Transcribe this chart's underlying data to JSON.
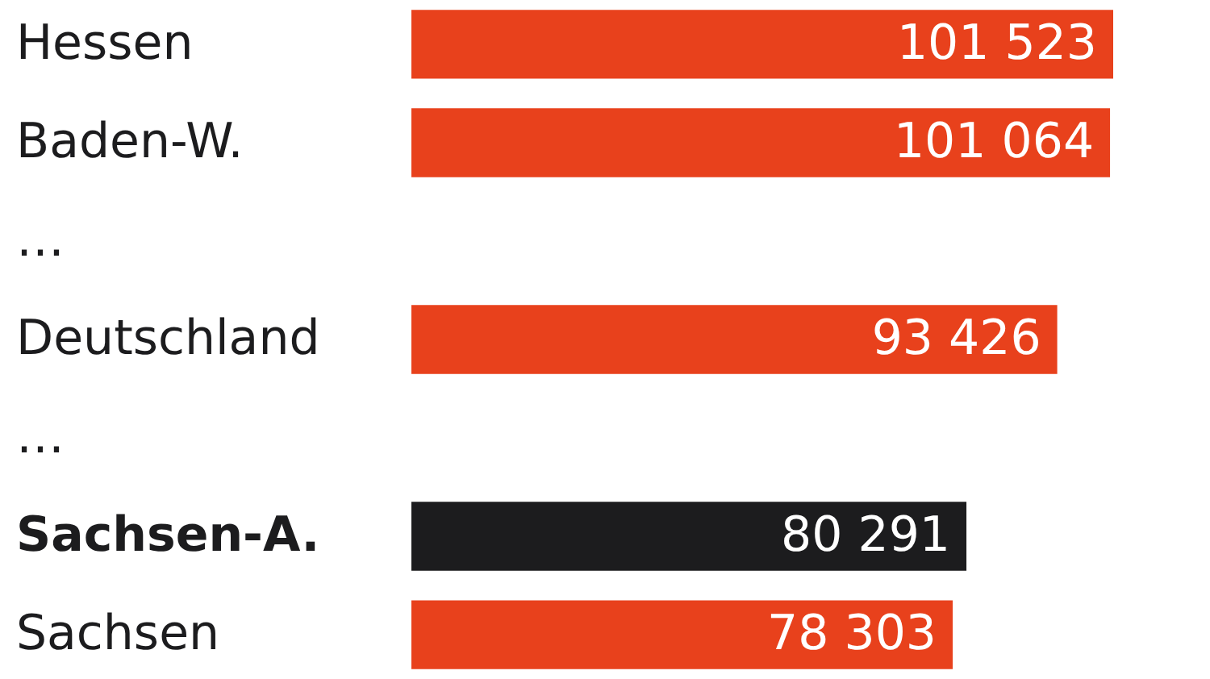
{
  "chart_data": {
    "type": "bar",
    "orientation": "horizontal",
    "categories": [
      "Hessen",
      "Baden-W.",
      "…",
      "Deutschland",
      "…",
      "Sachsen-A.",
      "Sachsen"
    ],
    "values": [
      101523,
      101064,
      null,
      93426,
      null,
      80291,
      78303
    ],
    "colors": [
      "#e8411c",
      "#e8411c",
      null,
      "#e8411c",
      null,
      "#1c1c1e",
      "#e8411c"
    ],
    "value_labels": [
      "101 523",
      "101 064",
      null,
      "93 426",
      null,
      "80 291",
      "78 303"
    ],
    "data_labels": false
  }
}
